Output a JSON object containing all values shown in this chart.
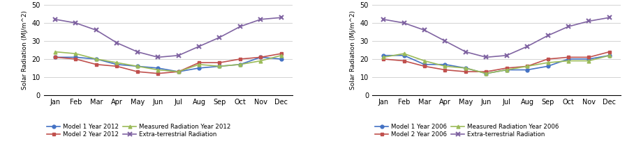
{
  "months": [
    "Jan",
    "Feb",
    "Mar",
    "Apr",
    "May",
    "Jun",
    "Jul",
    "Aug",
    "Sep",
    "Oct",
    "Nov",
    "Dec"
  ],
  "left": {
    "model1": [
      21,
      21,
      20,
      17,
      16,
      15,
      13,
      15,
      16,
      17,
      21,
      20
    ],
    "model2": [
      21,
      20,
      17,
      16,
      13,
      12,
      13,
      18,
      18,
      20,
      21,
      23
    ],
    "measured": [
      24,
      23,
      20,
      18,
      16,
      14,
      13,
      17,
      16,
      17,
      19,
      22
    ],
    "extraterrestrial": [
      42,
      40,
      36,
      29,
      24,
      21,
      22,
      27,
      32,
      38,
      42,
      43
    ],
    "ylabel": "Solar Radiation (MJ/m^2)",
    "legend": [
      "Model 1 Year 2012",
      "Model 2 Year 2012",
      "Measured Radiation Year 2012",
      "Extra-terrestrial Radiation"
    ]
  },
  "right": {
    "model1": [
      22,
      22,
      17,
      17,
      15,
      12,
      14,
      14,
      16,
      20,
      20,
      22
    ],
    "model2": [
      20,
      19,
      16,
      14,
      13,
      13,
      15,
      16,
      20,
      21,
      21,
      24
    ],
    "measured": [
      21,
      23,
      19,
      16,
      15,
      12,
      14,
      16,
      18,
      19,
      19,
      22
    ],
    "extraterrestrial": [
      42,
      40,
      36,
      30,
      24,
      21,
      22,
      27,
      33,
      38,
      41,
      43
    ],
    "ylabel": "Solar Radiation (Mj/m^2)",
    "legend": [
      "Model 1 Year 2006",
      "Model 2 Year 2006",
      "Measured Radiation Year 2006",
      "Extra-terrestrial Radiation"
    ]
  },
  "colors": {
    "model1": "#4472C4",
    "model2": "#C0504D",
    "measured": "#9BBB59",
    "extraterrestrial": "#8064A2"
  },
  "ylim": [
    0,
    50
  ],
  "yticks": [
    0,
    10,
    20,
    30,
    40,
    50
  ],
  "bg_color": "#ffffff"
}
